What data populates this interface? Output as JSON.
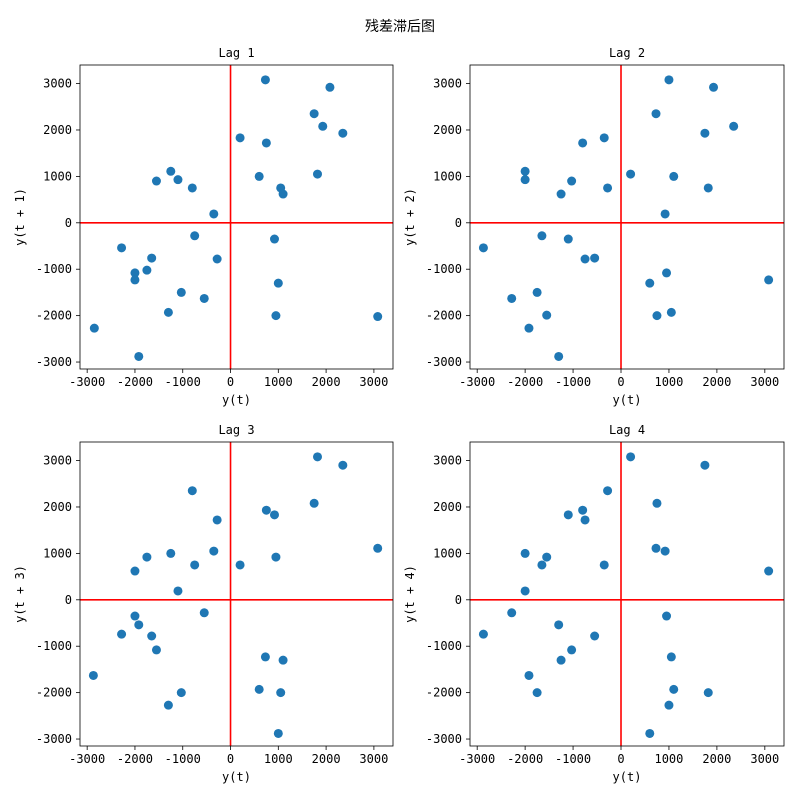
{
  "figure": {
    "suptitle": "残差滞后图",
    "marker_color": "#1f77b4",
    "reference_line_color": "#ff0000"
  },
  "chart_data": [
    {
      "type": "scatter",
      "title": "Lag 1",
      "xlabel": "y(t)",
      "ylabel": "y(t + 1)",
      "xlim": [
        -3150,
        3400
      ],
      "ylim": [
        -3150,
        3400
      ],
      "xticks": [
        -3000,
        -2000,
        -1000,
        0,
        1000,
        2000,
        3000
      ],
      "yticks": [
        -3000,
        -2000,
        -1000,
        0,
        1000,
        2000,
        3000
      ],
      "reference_lines": {
        "x": 0,
        "y": 0
      },
      "points": [
        [
          -2850,
          -2270
        ],
        [
          -2280,
          -540
        ],
        [
          -2000,
          -1080
        ],
        [
          -2000,
          -1230
        ],
        [
          -1920,
          -2880
        ],
        [
          -1750,
          -1020
        ],
        [
          -1650,
          -760
        ],
        [
          -1550,
          900
        ],
        [
          -1300,
          -1930
        ],
        [
          -1250,
          1110
        ],
        [
          -1100,
          930
        ],
        [
          -1030,
          -1500
        ],
        [
          -800,
          750
        ],
        [
          -750,
          -280
        ],
        [
          -550,
          -1630
        ],
        [
          -350,
          190
        ],
        [
          -280,
          -780
        ],
        [
          200,
          1830
        ],
        [
          600,
          1000
        ],
        [
          730,
          3080
        ],
        [
          750,
          1720
        ],
        [
          920,
          -350
        ],
        [
          950,
          -2000
        ],
        [
          1000,
          -1300
        ],
        [
          1050,
          750
        ],
        [
          1100,
          620
        ],
        [
          1750,
          2350
        ],
        [
          1820,
          1050
        ],
        [
          1930,
          2080
        ],
        [
          2080,
          2920
        ],
        [
          2350,
          1930
        ],
        [
          3080,
          -2020
        ]
      ]
    },
    {
      "type": "scatter",
      "title": "Lag 2",
      "xlabel": "y(t)",
      "ylabel": "y(t + 2)",
      "xlim": [
        -3150,
        3400
      ],
      "ylim": [
        -3150,
        3400
      ],
      "xticks": [
        -3000,
        -2000,
        -1000,
        0,
        1000,
        2000,
        3000
      ],
      "yticks": [
        -3000,
        -2000,
        -1000,
        0,
        1000,
        2000,
        3000
      ],
      "reference_lines": {
        "x": 0,
        "y": 0
      },
      "points": [
        [
          -2870,
          -540
        ],
        [
          -2280,
          -1630
        ],
        [
          -2000,
          1110
        ],
        [
          -2000,
          930
        ],
        [
          -1920,
          -2270
        ],
        [
          -1750,
          -1500
        ],
        [
          -1650,
          -280
        ],
        [
          -1550,
          -1990
        ],
        [
          -1300,
          -2880
        ],
        [
          -1250,
          620
        ],
        [
          -1100,
          -350
        ],
        [
          -1030,
          900
        ],
        [
          -800,
          1720
        ],
        [
          -750,
          -780
        ],
        [
          -550,
          -760
        ],
        [
          -350,
          1830
        ],
        [
          -280,
          750
        ],
        [
          200,
          1050
        ],
        [
          600,
          -1300
        ],
        [
          730,
          2350
        ],
        [
          750,
          -2000
        ],
        [
          920,
          190
        ],
        [
          950,
          -1080
        ],
        [
          1000,
          3080
        ],
        [
          1050,
          -1930
        ],
        [
          1100,
          1000
        ],
        [
          1750,
          1930
        ],
        [
          1820,
          750
        ],
        [
          1930,
          2920
        ],
        [
          2350,
          2080
        ],
        [
          3080,
          -1230
        ]
      ]
    },
    {
      "type": "scatter",
      "title": "Lag 3",
      "xlabel": "y(t)",
      "ylabel": "y(t + 3)",
      "xlim": [
        -3150,
        3400
      ],
      "ylim": [
        -3150,
        3400
      ],
      "xticks": [
        -3000,
        -2000,
        -1000,
        0,
        1000,
        2000,
        3000
      ],
      "yticks": [
        -3000,
        -2000,
        -1000,
        0,
        1000,
        2000,
        3000
      ],
      "reference_lines": {
        "x": 0,
        "y": 0
      },
      "points": [
        [
          -2870,
          -1630
        ],
        [
          -2280,
          -740
        ],
        [
          -2000,
          620
        ],
        [
          -2000,
          -350
        ],
        [
          -1920,
          -540
        ],
        [
          -1750,
          920
        ],
        [
          -1650,
          -780
        ],
        [
          -1550,
          -1080
        ],
        [
          -1300,
          -2270
        ],
        [
          -1250,
          1000
        ],
        [
          -1100,
          190
        ],
        [
          -1030,
          -2000
        ],
        [
          -800,
          2350
        ],
        [
          -750,
          750
        ],
        [
          -550,
          -280
        ],
        [
          -350,
          1050
        ],
        [
          -280,
          1720
        ],
        [
          200,
          750
        ],
        [
          600,
          -1930
        ],
        [
          730,
          -1230
        ],
        [
          750,
          1930
        ],
        [
          920,
          1830
        ],
        [
          950,
          920
        ],
        [
          1000,
          -2880
        ],
        [
          1050,
          -2000
        ],
        [
          1100,
          -1300
        ],
        [
          1750,
          2080
        ],
        [
          1820,
          3080
        ],
        [
          2350,
          2900
        ],
        [
          3080,
          1110
        ]
      ]
    },
    {
      "type": "scatter",
      "title": "Lag 4",
      "xlabel": "y(t)",
      "ylabel": "y(t + 4)",
      "xlim": [
        -3150,
        3400
      ],
      "ylim": [
        -3150,
        3400
      ],
      "xticks": [
        -3000,
        -2000,
        -1000,
        0,
        1000,
        2000,
        3000
      ],
      "yticks": [
        -3000,
        -2000,
        -1000,
        0,
        1000,
        2000,
        3000
      ],
      "reference_lines": {
        "x": 0,
        "y": 0
      },
      "points": [
        [
          -2870,
          -740
        ],
        [
          -2280,
          -280
        ],
        [
          -2000,
          1000
        ],
        [
          -2000,
          190
        ],
        [
          -1920,
          -1630
        ],
        [
          -1750,
          -2000
        ],
        [
          -1650,
          750
        ],
        [
          -1550,
          920
        ],
        [
          -1300,
          -540
        ],
        [
          -1250,
          -1300
        ],
        [
          -1100,
          1830
        ],
        [
          -1030,
          -1080
        ],
        [
          -800,
          1930
        ],
        [
          -750,
          1720
        ],
        [
          -550,
          -780
        ],
        [
          -350,
          750
        ],
        [
          -280,
          2350
        ],
        [
          200,
          3080
        ],
        [
          600,
          -2880
        ],
        [
          730,
          1110
        ],
        [
          750,
          2080
        ],
        [
          920,
          1050
        ],
        [
          950,
          -350
        ],
        [
          1000,
          -2270
        ],
        [
          1050,
          -1230
        ],
        [
          1100,
          -1930
        ],
        [
          1750,
          2900
        ],
        [
          1820,
          -2000
        ],
        [
          3080,
          620
        ]
      ]
    }
  ]
}
